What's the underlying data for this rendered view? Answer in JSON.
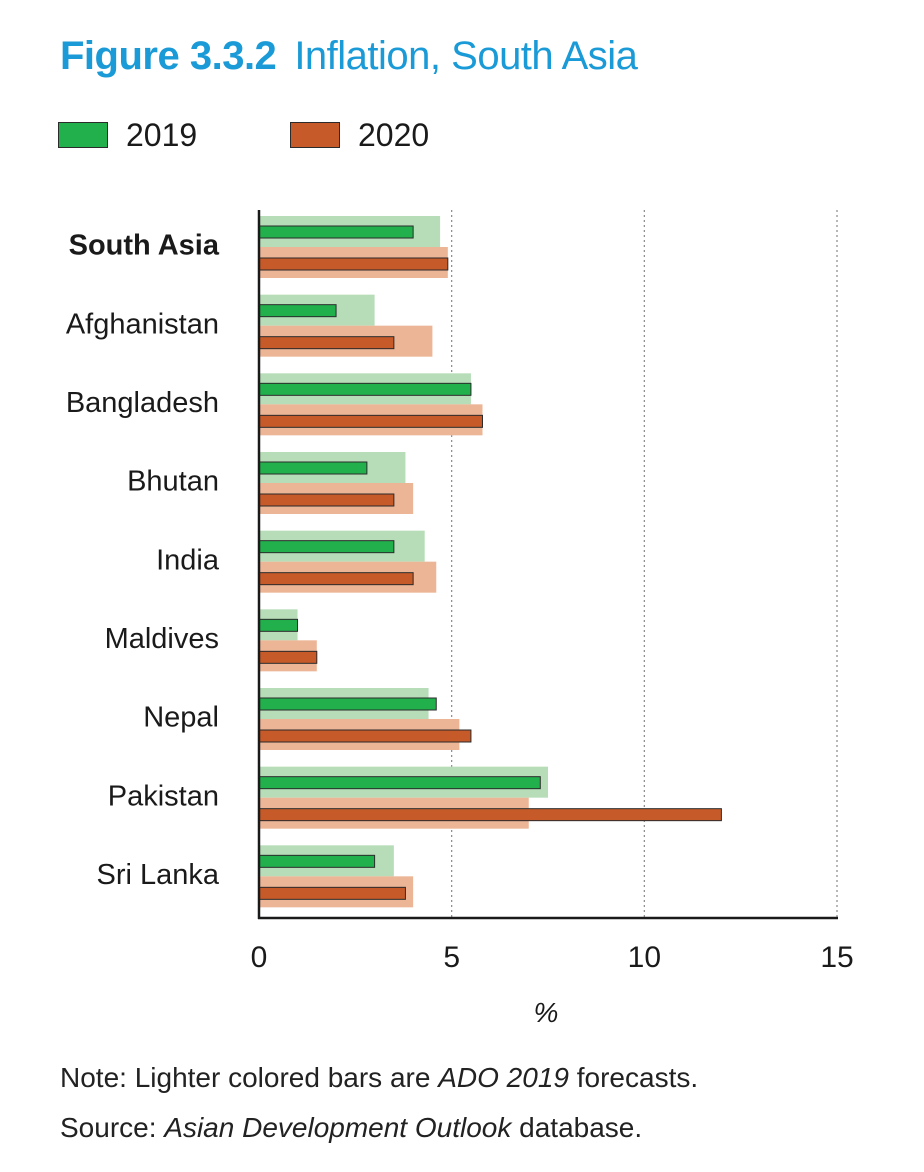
{
  "figure": {
    "number": "Figure 3.3.2",
    "name": "Inflation, South Asia"
  },
  "legend": {
    "items": [
      {
        "label": "2019",
        "color": "#21b04b"
      },
      {
        "label": "2020",
        "color": "#c65a28"
      }
    ]
  },
  "colors": {
    "actual_2019": "#21b04b",
    "forecast_2019": "#b6ddb7",
    "actual_2020": "#c65a28",
    "forecast_2020": "#ebb596",
    "bar_outline": "#2b2b2b",
    "grid": "#888888",
    "axis": "#1a1a1a"
  },
  "notes": {
    "note_prefix": "Note: Lighter colored bars are ",
    "note_italic": "ADO 2019",
    "note_suffix": " forecasts.",
    "source_prefix": "Source: ",
    "source_italic": "Asian Development Outlook",
    "source_suffix": " database."
  },
  "chart_data": {
    "type": "bar",
    "orientation": "horizontal",
    "title": "Inflation, South Asia",
    "xlabel": "%",
    "ylabel": "",
    "xlim": [
      0,
      15
    ],
    "xticks": [
      0,
      5,
      10,
      15
    ],
    "grid": "vertical dotted lines at 5, 10, 15",
    "categories": [
      "South Asia",
      "Afghanistan",
      "Bangladesh",
      "Bhutan",
      "India",
      "Maldives",
      "Nepal",
      "Pakistan",
      "Sri Lanka"
    ],
    "bold_categories": [
      "South Asia"
    ],
    "series": [
      {
        "name": "2019",
        "kind": "actual",
        "values": [
          4.0,
          2.0,
          5.5,
          2.8,
          3.5,
          1.0,
          4.6,
          7.3,
          3.0
        ]
      },
      {
        "name": "2019",
        "kind": "ADO 2019 forecast",
        "values": [
          4.7,
          3.0,
          5.5,
          3.8,
          4.3,
          1.0,
          4.4,
          7.5,
          3.5
        ]
      },
      {
        "name": "2020",
        "kind": "actual",
        "values": [
          4.9,
          3.5,
          5.8,
          3.5,
          4.0,
          1.5,
          5.5,
          12.0,
          3.8
        ]
      },
      {
        "name": "2020",
        "kind": "ADO 2019 forecast",
        "values": [
          4.9,
          4.5,
          5.8,
          4.0,
          4.6,
          1.5,
          5.2,
          7.0,
          4.0
        ]
      }
    ]
  }
}
